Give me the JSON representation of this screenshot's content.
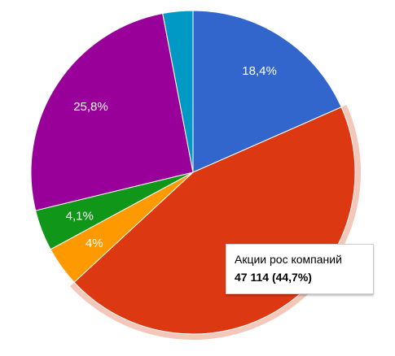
{
  "chart_data": {
    "type": "pie",
    "slices": [
      {
        "label": "",
        "value": 18.4,
        "value_label": "18,4%",
        "color": "#3366cc"
      },
      {
        "label": "Акции рос компаний",
        "value": 44.7,
        "value_label": "",
        "color": "#dc3912",
        "highlighted": true
      },
      {
        "label": "",
        "value": 4.0,
        "value_label": "4%",
        "color": "#ff9900"
      },
      {
        "label": "",
        "value": 4.1,
        "value_label": "4,1%",
        "color": "#109618"
      },
      {
        "label": "",
        "value": 25.8,
        "value_label": "25,8%",
        "color": "#990099"
      },
      {
        "label": "",
        "value": 3.0,
        "value_label": "",
        "color": "#0099c6"
      }
    ],
    "highlight_color": "#f4c7bb"
  },
  "tooltip": {
    "name": "Акции рос компаний",
    "value": "47 114 (44,7%)"
  }
}
